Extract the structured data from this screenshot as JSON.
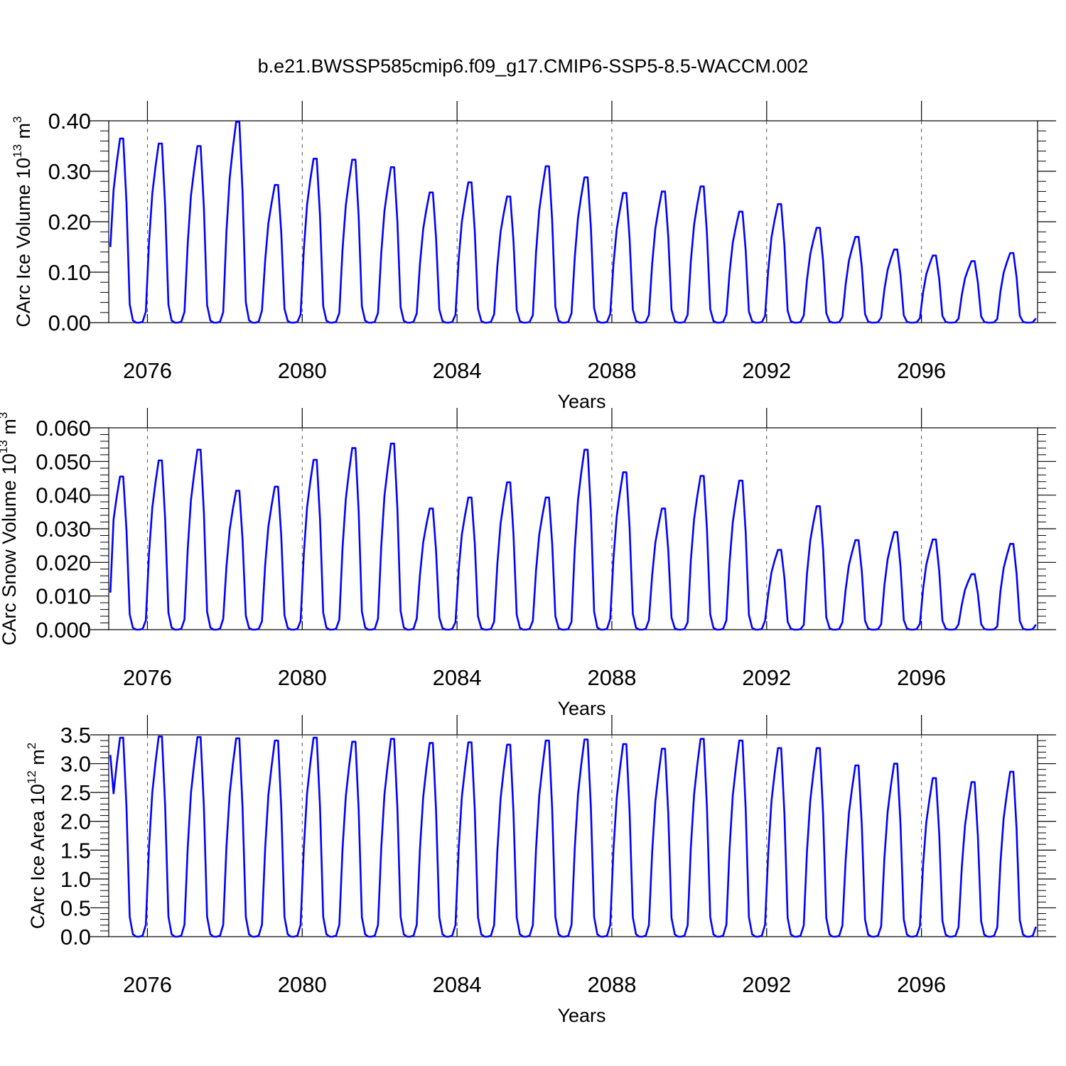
{
  "title": "b.e21.BWSSP585cmip6.f09_g17.CMIP6-SSP5-8.5-WACCM.002",
  "chart_data": [
    {
      "type": "line",
      "ylabel": "CArc Ice Volume",
      "ylabel_exp": "10",
      "ylabel_sup": "13",
      "ylabel_unit": "m",
      "ylabel_unit_sup": "3",
      "xlabel": "Years",
      "xlim": [
        2075,
        2099
      ],
      "ylim": [
        0,
        0.4
      ],
      "yticks": [
        "0.00",
        "0.10",
        "0.20",
        "0.30",
        "0.40"
      ],
      "xticks": [
        "2076",
        "2080",
        "2084",
        "2088",
        "2092",
        "2096"
      ],
      "line_color": "#0000ff",
      "grid": "dashed vertical lines at labeled years",
      "series": [
        {
          "peaks": [
            0.365,
            0.355,
            0.35,
            0.398,
            0.273,
            0.325,
            0.323,
            0.308,
            0.258,
            0.278,
            0.25,
            0.31,
            0.288,
            0.257,
            0.26,
            0.27,
            0.22,
            0.235,
            0.188,
            0.17,
            0.145,
            0.133,
            0.122,
            0.138
          ],
          "start": 0.15,
          "min": 0.0
        }
      ]
    },
    {
      "type": "line",
      "ylabel": "CArc Snow Volume",
      "ylabel_exp": "10",
      "ylabel_sup": "13",
      "ylabel_unit": "m",
      "ylabel_unit_sup": "3",
      "xlabel": "Years",
      "xlim": [
        2075,
        2099
      ],
      "ylim": [
        0,
        0.06
      ],
      "yticks": [
        "0.000",
        "0.010",
        "0.020",
        "0.030",
        "0.040",
        "0.050",
        "0.060"
      ],
      "xticks": [
        "2076",
        "2080",
        "2084",
        "2088",
        "2092",
        "2096"
      ],
      "line_color": "#0000ff",
      "grid": "dashed vertical lines at labeled years",
      "series": [
        {
          "peaks": [
            0.0455,
            0.0503,
            0.0535,
            0.0413,
            0.0425,
            0.0505,
            0.054,
            0.0553,
            0.036,
            0.0393,
            0.0438,
            0.0393,
            0.0535,
            0.0468,
            0.036,
            0.0457,
            0.0443,
            0.0237,
            0.0367,
            0.0266,
            0.029,
            0.0268,
            0.0165,
            0.0255
          ],
          "start": 0.011,
          "min": 0.0
        }
      ]
    },
    {
      "type": "line",
      "ylabel": "CArc Ice Area",
      "ylabel_exp": "10",
      "ylabel_sup": "12",
      "ylabel_unit": "m",
      "ylabel_unit_sup": "2",
      "xlabel": "Years",
      "xlim": [
        2075,
        2099
      ],
      "ylim": [
        0,
        3.5
      ],
      "yticks": [
        "0.0",
        "0.5",
        "1.0",
        "1.5",
        "2.0",
        "2.5",
        "3.0",
        "3.5"
      ],
      "xticks": [
        "2076",
        "2080",
        "2084",
        "2088",
        "2092",
        "2096"
      ],
      "line_color": "#0000ff",
      "grid": "dashed vertical lines at labeled years",
      "series": [
        {
          "peaks": [
            3.45,
            3.47,
            3.46,
            3.44,
            3.4,
            3.45,
            3.38,
            3.43,
            3.36,
            3.37,
            3.33,
            3.4,
            3.42,
            3.34,
            3.26,
            3.43,
            3.4,
            3.27,
            3.27,
            2.97,
            3.0,
            2.75,
            2.68,
            2.86
          ],
          "start": 3.15,
          "min": 0.0
        }
      ]
    }
  ]
}
